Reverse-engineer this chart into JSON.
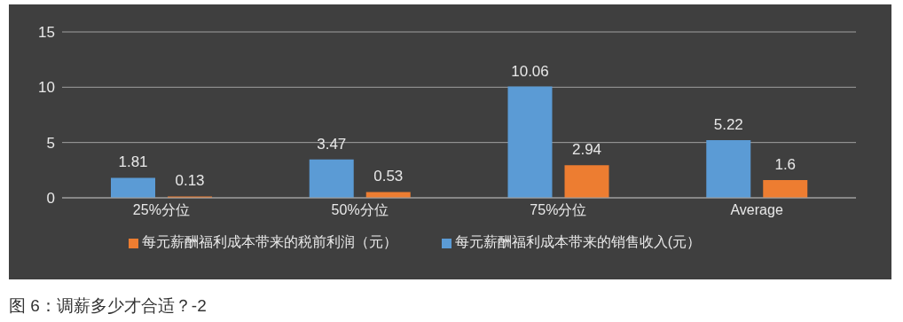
{
  "chart_data": {
    "type": "bar",
    "categories": [
      "25%分位",
      "50%分位",
      "75%分位",
      "Average"
    ],
    "series": [
      {
        "name": "每元薪酬福利成本带来的销售收入(元）",
        "color": "#5b9bd5",
        "values": [
          1.81,
          3.47,
          10.06,
          5.22
        ]
      },
      {
        "name": "每元薪酬福利成本带来的税前利润（元）",
        "color": "#ed7d31",
        "values": [
          0.13,
          0.53,
          2.94,
          1.6
        ]
      }
    ],
    "ylim": [
      0,
      15
    ],
    "yticks": [
      0,
      5,
      10,
      15
    ],
    "grid": "y",
    "legend": "bottom",
    "data_labels": true,
    "annotations": [
      "图 6：调薪多少才合适？-2"
    ]
  }
}
